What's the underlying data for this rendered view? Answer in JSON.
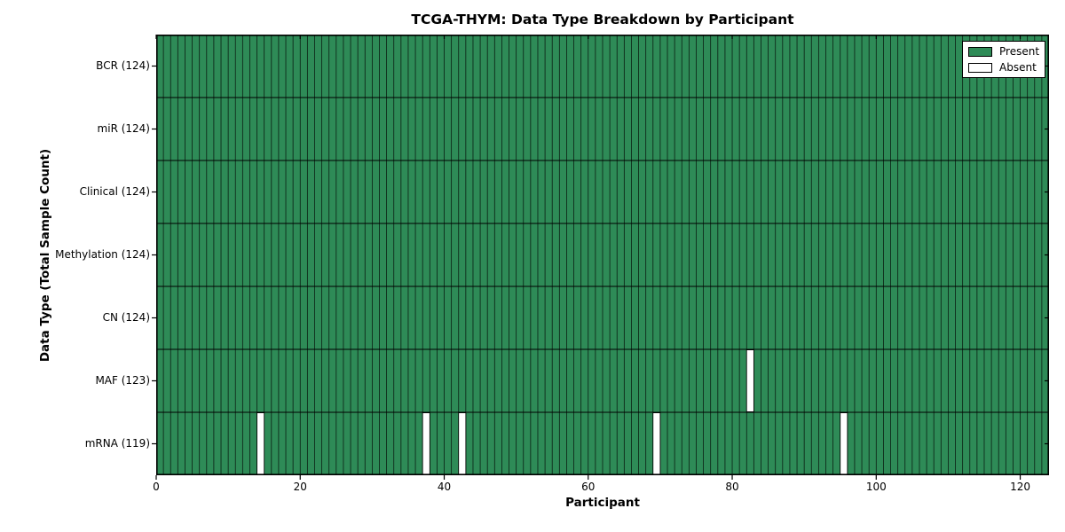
{
  "chart_data": {
    "type": "heatmap",
    "title": "TCGA-THYM: Data Type Breakdown by Participant",
    "xlabel": "Participant",
    "ylabel": "Data Type (Total Sample Count)",
    "xlim": [
      0,
      124
    ],
    "x_ticks": [
      0,
      20,
      40,
      60,
      80,
      100,
      120
    ],
    "n_participants": 124,
    "rows": [
      {
        "label": "BCR (124)",
        "data_type": "BCR",
        "total": 124,
        "absent_participants": []
      },
      {
        "label": "miR (124)",
        "data_type": "miR",
        "total": 124,
        "absent_participants": []
      },
      {
        "label": "Clinical (124)",
        "data_type": "Clinical",
        "total": 124,
        "absent_participants": []
      },
      {
        "label": "Methylation (124)",
        "data_type": "Methylation",
        "total": 124,
        "absent_participants": []
      },
      {
        "label": "CN (124)",
        "data_type": "CN",
        "total": 124,
        "absent_participants": []
      },
      {
        "label": "MAF (123)",
        "data_type": "MAF",
        "total": 123,
        "absent_participants": [
          82
        ]
      },
      {
        "label": "mRNA (119)",
        "data_type": "mRNA",
        "total": 119,
        "absent_participants": [
          14,
          37,
          42,
          69,
          95
        ]
      }
    ],
    "legend": {
      "position": "upper-right",
      "entries": [
        {
          "label": "Present",
          "color": "#2e8b57"
        },
        {
          "label": "Absent",
          "color": "#ffffff"
        }
      ]
    },
    "colors": {
      "present": "#2e8b57",
      "absent": "#ffffff",
      "edge": "#000000",
      "background": "#ffffff"
    }
  }
}
